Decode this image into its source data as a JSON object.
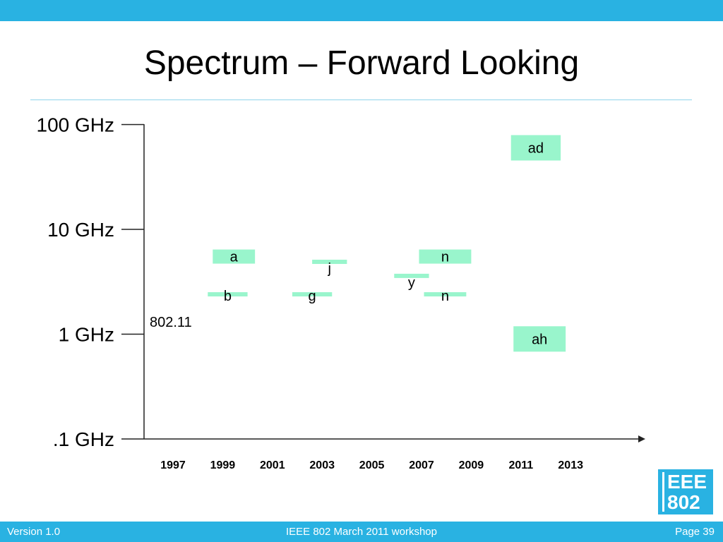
{
  "slide": {
    "title": "Spectrum – Forward Looking"
  },
  "chart_data": {
    "type": "timeline",
    "y_axis": {
      "scale": "log",
      "unit": "GHz",
      "tick_labels": [
        "100 GHz",
        "10 GHz",
        "1 GHz",
        ".1 GHz"
      ],
      "ticks": [
        100,
        10,
        1,
        0.1
      ]
    },
    "x_axis": {
      "tick_labels": [
        "1997",
        "1999",
        "2001",
        "2003",
        "2005",
        "2007",
        "2009",
        "2011",
        "2013"
      ]
    },
    "series_label": "802.11",
    "bars": [
      {
        "label": "b",
        "start": 1998.4,
        "end": 2000.0,
        "freq": 2.4
      },
      {
        "label": "a",
        "start": 1998.6,
        "end": 2000.3,
        "freq": 5.5
      },
      {
        "label": "j",
        "start": 2002.6,
        "end": 2004.0,
        "freq": 4.9
      },
      {
        "label": "g",
        "start": 2001.8,
        "end": 2003.4,
        "freq": 2.4
      },
      {
        "label": "y",
        "start": 2005.9,
        "end": 2007.3,
        "freq": 3.6
      },
      {
        "label": "n",
        "start": 2006.9,
        "end": 2009.0,
        "freq": 5.5
      },
      {
        "label": "n",
        "start": 2007.1,
        "end": 2008.8,
        "freq": 2.4
      },
      {
        "label": "ad",
        "start": 2010.6,
        "end": 2012.6,
        "freq": 60
      },
      {
        "label": "ah",
        "start": 2010.7,
        "end": 2012.8,
        "freq": 0.9
      }
    ],
    "bar_color": "#99f5cc"
  },
  "footer": {
    "version": "Version 1.0",
    "event": "IEEE 802 March 2011 workshop",
    "page": "Page 39"
  },
  "logo": {
    "line1": "EEE",
    "line2": "802"
  },
  "colors": {
    "accent": "#29b2e2"
  }
}
